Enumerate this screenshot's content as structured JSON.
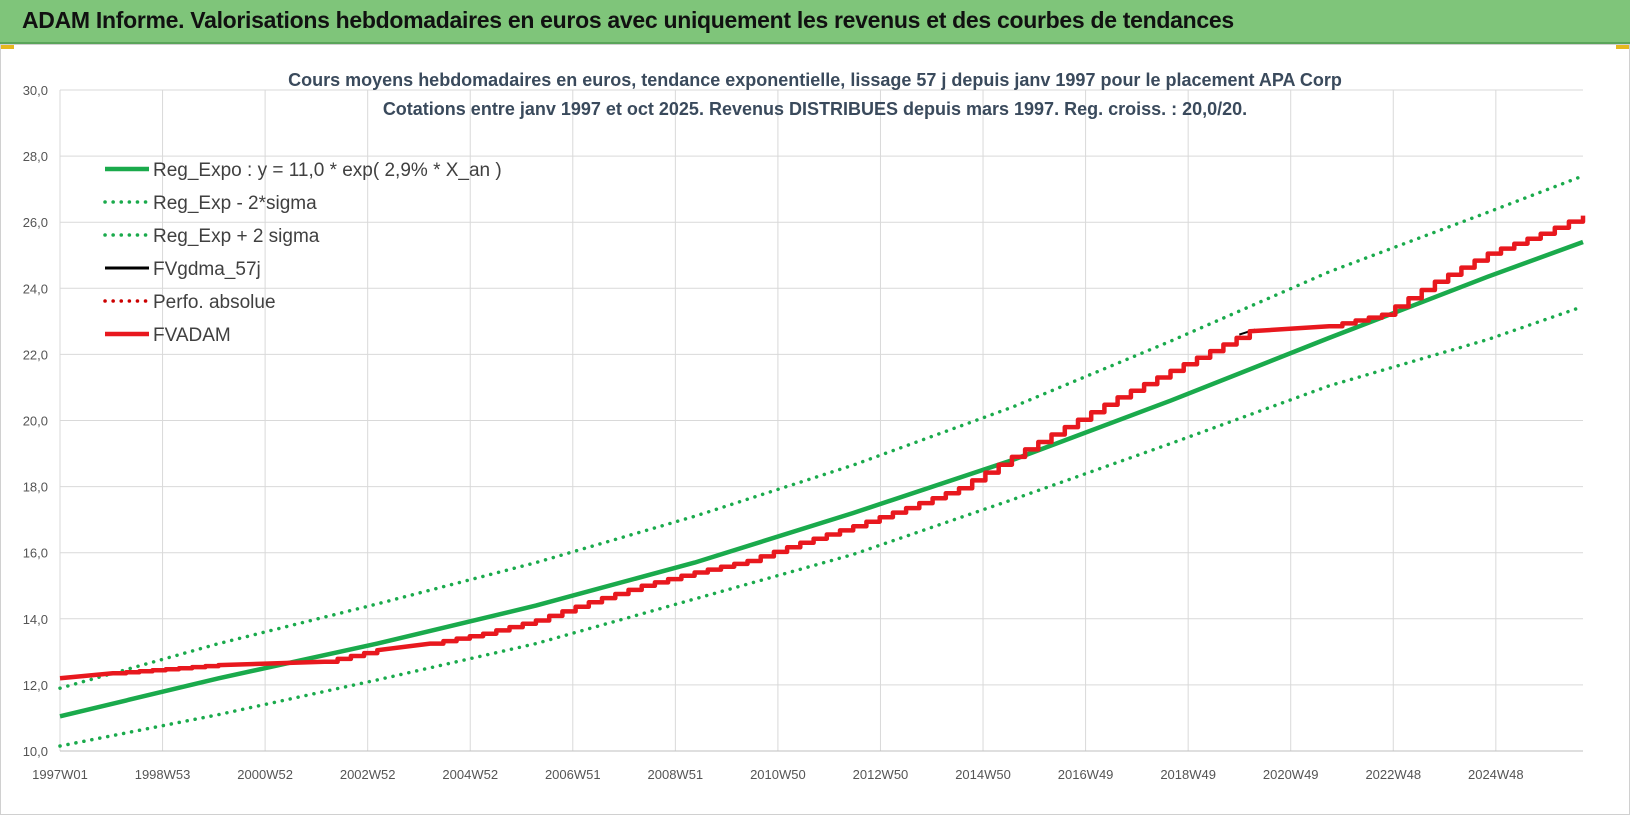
{
  "banner": {
    "title": "ADAM Informe. Valorisations hebdomadaires en euros avec uniquement les revenus et des courbes de tendances",
    "color": "#7fc57a"
  },
  "chart_data": {
    "type": "line",
    "title": "Cours moyens hebdomadaires en euros, tendance exponentielle, lissage 57 j depuis janv 1997 pour le placement APA Corp",
    "subtitle": "Cotations entre janv 1997 et oct 2025. Revenus DISTRIBUES depuis mars 1997. Reg. croiss. : 20,0/20.",
    "xlabel": "",
    "ylabel": "",
    "ylim": [
      10,
      30
    ],
    "xlim": [
      1997.0,
      2025.8
    ],
    "y_ticks": [
      "10,0",
      "12,0",
      "14,0",
      "16,0",
      "18,0",
      "20,0",
      "22,0",
      "24,0",
      "26,0",
      "28,0",
      "30,0"
    ],
    "x_tick_labels": [
      "1997W01",
      "1998W53",
      "2000W52",
      "2002W52",
      "2004W52",
      "2006W51",
      "2008W51",
      "2010W50",
      "2012W50",
      "2014W50",
      "2016W49",
      "2018W49",
      "2020W49",
      "2022W48",
      "2024W48"
    ],
    "grid": true,
    "legend_position": "top-left",
    "series": [
      {
        "name": "Reg_Expo : y = 11,0 * exp( 2,9% *  X_an )",
        "color": "#1aaa4c",
        "style": "solid",
        "x": [
          1997.0,
          2000.0,
          2003.0,
          2006.0,
          2009.0,
          2012.0,
          2015.0,
          2018.0,
          2021.0,
          2024.0,
          2025.8
        ],
        "y": [
          11.05,
          12.2,
          13.25,
          14.4,
          15.7,
          17.2,
          18.8,
          20.6,
          22.5,
          24.35,
          25.4
        ]
      },
      {
        "name": "Reg_Exp - 2*sigma",
        "color": "#1aaa4c",
        "style": "dotted",
        "x": [
          1997.0,
          2000.0,
          2003.0,
          2006.0,
          2009.0,
          2012.0,
          2015.0,
          2018.0,
          2021.0,
          2024.0,
          2025.8
        ],
        "y": [
          10.15,
          11.1,
          12.15,
          13.25,
          14.6,
          15.95,
          17.6,
          19.3,
          21.05,
          22.45,
          23.45
        ]
      },
      {
        "name": "Reg_Exp + 2 sigma",
        "color": "#1aaa4c",
        "style": "dotted",
        "x": [
          1997.0,
          2000.0,
          2003.0,
          2006.0,
          2009.0,
          2012.0,
          2015.0,
          2018.0,
          2021.0,
          2024.0,
          2025.8
        ],
        "y": [
          11.9,
          13.25,
          14.45,
          15.7,
          17.1,
          18.65,
          20.4,
          22.4,
          24.5,
          26.3,
          27.4
        ]
      },
      {
        "name": "FVgdma_57j",
        "color": "#000000",
        "style": "solid",
        "x": [
          2019.3,
          2019.6
        ],
        "y": [
          22.6,
          22.75
        ]
      },
      {
        "name": "Perfo. absolue",
        "color": "#cc0000",
        "style": "dotted",
        "x": [],
        "y": []
      },
      {
        "name": "FVADAM",
        "color": "#e8181e",
        "style": "solid",
        "x": [
          1997.0,
          1998.0,
          2000.0,
          2002.0,
          2003.0,
          2004.0,
          2005.0,
          2006.0,
          2007.0,
          2008.0,
          2009.0,
          2010.0,
          2011.0,
          2012.0,
          2013.0,
          2014.0,
          2015.0,
          2016.0,
          2017.0,
          2018.0,
          2019.5,
          2021.0,
          2022.0,
          2023.0,
          2024.0,
          2025.0,
          2025.8
        ],
        "y": [
          12.2,
          12.35,
          12.6,
          12.7,
          13.05,
          13.25,
          13.55,
          13.95,
          14.5,
          15.0,
          15.4,
          15.75,
          16.3,
          16.8,
          17.35,
          17.95,
          18.9,
          19.8,
          20.7,
          21.5,
          22.7,
          22.85,
          23.2,
          24.2,
          25.05,
          25.65,
          26.2
        ]
      }
    ]
  }
}
